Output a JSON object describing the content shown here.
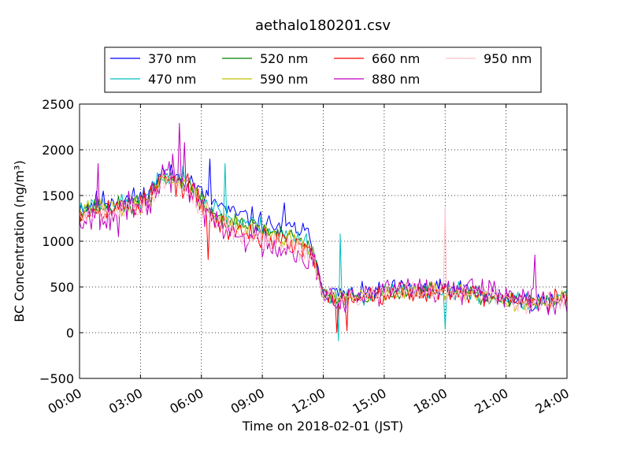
{
  "chart_data": {
    "type": "line",
    "title": "aethalo180201.csv",
    "xlabel": "Time on 2018-02-01 (JST)",
    "ylabel": "BC Concentration (ng/m³)",
    "x_ticks": [
      "00:00",
      "03:00",
      "06:00",
      "09:00",
      "12:00",
      "15:00",
      "18:00",
      "21:00",
      "24:00"
    ],
    "y_ticks": [
      -500,
      0,
      500,
      1000,
      1500,
      2000,
      2500
    ],
    "xlim_hours": [
      0,
      24
    ],
    "ylim": [
      -500,
      2500
    ],
    "grid": true,
    "legend_position": "top-center",
    "series": [
      {
        "name": "370 nm",
        "color": "#0000ff",
        "seed": 11,
        "noise": 110,
        "spikes": [
          [
            6.45,
            1900
          ],
          [
            10.1,
            1420
          ]
        ],
        "values": [
          [
            0,
            1380
          ],
          [
            1,
            1440
          ],
          [
            2,
            1450
          ],
          [
            3,
            1480
          ],
          [
            3.5,
            1550
          ],
          [
            4,
            1750
          ],
          [
            4.5,
            1720
          ],
          [
            5,
            1700
          ],
          [
            5.5,
            1660
          ],
          [
            6,
            1520
          ],
          [
            6.5,
            1450
          ],
          [
            7,
            1380
          ],
          [
            7.5,
            1300
          ],
          [
            8,
            1280
          ],
          [
            8.5,
            1250
          ],
          [
            9,
            1200
          ],
          [
            10,
            1150
          ],
          [
            11,
            1120
          ],
          [
            11.5,
            960
          ],
          [
            12,
            450
          ],
          [
            13,
            420
          ],
          [
            14,
            420
          ],
          [
            15,
            470
          ],
          [
            16,
            480
          ],
          [
            17,
            470
          ],
          [
            18,
            480
          ],
          [
            19,
            460
          ],
          [
            20,
            420
          ],
          [
            21,
            390
          ],
          [
            22,
            340
          ],
          [
            23,
            340
          ],
          [
            24,
            400
          ]
        ]
      },
      {
        "name": "470 nm",
        "color": "#00bfbf",
        "seed": 23,
        "noise": 100,
        "spikes": [
          [
            7.15,
            1850
          ],
          [
            12.85,
            1080
          ],
          [
            12.75,
            -90
          ],
          [
            18,
            40
          ]
        ],
        "values": [
          [
            0,
            1360
          ],
          [
            1,
            1400
          ],
          [
            2,
            1400
          ],
          [
            3,
            1440
          ],
          [
            3.5,
            1520
          ],
          [
            4,
            1720
          ],
          [
            4.5,
            1700
          ],
          [
            5,
            1680
          ],
          [
            5.5,
            1640
          ],
          [
            6,
            1480
          ],
          [
            6.5,
            1380
          ],
          [
            7,
            1300
          ],
          [
            7.5,
            1230
          ],
          [
            8,
            1220
          ],
          [
            8.5,
            1200
          ],
          [
            9,
            1150
          ],
          [
            10,
            1080
          ],
          [
            11,
            1040
          ],
          [
            11.5,
            900
          ],
          [
            12,
            420
          ],
          [
            13,
            400
          ],
          [
            14,
            400
          ],
          [
            15,
            450
          ],
          [
            16,
            460
          ],
          [
            17,
            450
          ],
          [
            18,
            460
          ],
          [
            19,
            440
          ],
          [
            20,
            400
          ],
          [
            21,
            380
          ],
          [
            22,
            330
          ],
          [
            23,
            330
          ],
          [
            24,
            390
          ]
        ]
      },
      {
        "name": "520 nm",
        "color": "#008000",
        "seed": 37,
        "noise": 95,
        "spikes": [],
        "values": [
          [
            0,
            1330
          ],
          [
            1,
            1380
          ],
          [
            2,
            1380
          ],
          [
            3,
            1420
          ],
          [
            3.5,
            1490
          ],
          [
            4,
            1700
          ],
          [
            4.5,
            1680
          ],
          [
            5,
            1650
          ],
          [
            5.5,
            1600
          ],
          [
            6,
            1440
          ],
          [
            6.5,
            1320
          ],
          [
            7,
            1250
          ],
          [
            7.5,
            1200
          ],
          [
            8,
            1190
          ],
          [
            8.5,
            1160
          ],
          [
            9,
            1120
          ],
          [
            10,
            1050
          ],
          [
            11,
            1000
          ],
          [
            11.5,
            860
          ],
          [
            12,
            400
          ],
          [
            13,
            390
          ],
          [
            14,
            400
          ],
          [
            15,
            440
          ],
          [
            16,
            450
          ],
          [
            17,
            440
          ],
          [
            18,
            450
          ],
          [
            19,
            430
          ],
          [
            20,
            390
          ],
          [
            21,
            370
          ],
          [
            22,
            320
          ],
          [
            23,
            320
          ],
          [
            24,
            380
          ]
        ]
      },
      {
        "name": "590 nm",
        "color": "#bfbf00",
        "seed": 41,
        "noise": 95,
        "spikes": [],
        "values": [
          [
            0,
            1320
          ],
          [
            1,
            1370
          ],
          [
            2,
            1370
          ],
          [
            3,
            1410
          ],
          [
            3.5,
            1480
          ],
          [
            4,
            1690
          ],
          [
            4.5,
            1670
          ],
          [
            5,
            1640
          ],
          [
            5.5,
            1590
          ],
          [
            6,
            1430
          ],
          [
            6.5,
            1310
          ],
          [
            7,
            1240
          ],
          [
            7.5,
            1190
          ],
          [
            8,
            1180
          ],
          [
            8.5,
            1150
          ],
          [
            9,
            1110
          ],
          [
            10,
            1040
          ],
          [
            11,
            990
          ],
          [
            11.5,
            850
          ],
          [
            12,
            400
          ],
          [
            13,
            385
          ],
          [
            14,
            395
          ],
          [
            15,
            435
          ],
          [
            16,
            445
          ],
          [
            17,
            435
          ],
          [
            18,
            445
          ],
          [
            19,
            425
          ],
          [
            20,
            385
          ],
          [
            21,
            365
          ],
          [
            22,
            315
          ],
          [
            23,
            315
          ],
          [
            24,
            375
          ]
        ]
      },
      {
        "name": "660 nm",
        "color": "#ff0000",
        "seed": 53,
        "noise": 120,
        "spikes": [
          [
            6.3,
            800
          ],
          [
            12.7,
            0
          ],
          [
            13.2,
            20
          ]
        ],
        "values": [
          [
            0,
            1300
          ],
          [
            1,
            1360
          ],
          [
            2,
            1360
          ],
          [
            3,
            1400
          ],
          [
            3.5,
            1480
          ],
          [
            4,
            1680
          ],
          [
            4.5,
            1660
          ],
          [
            5,
            1620
          ],
          [
            5.5,
            1560
          ],
          [
            6,
            1400
          ],
          [
            6.5,
            1250
          ],
          [
            7,
            1180
          ],
          [
            7.5,
            1120
          ],
          [
            8,
            1100
          ],
          [
            8.5,
            1080
          ],
          [
            9,
            1050
          ],
          [
            10,
            980
          ],
          [
            11,
            930
          ],
          [
            11.5,
            820
          ],
          [
            12,
            400
          ],
          [
            13,
            380
          ],
          [
            14,
            400
          ],
          [
            15,
            440
          ],
          [
            16,
            450
          ],
          [
            17,
            440
          ],
          [
            18,
            460
          ],
          [
            19,
            440
          ],
          [
            20,
            400
          ],
          [
            21,
            380
          ],
          [
            22,
            330
          ],
          [
            23,
            330
          ],
          [
            24,
            400
          ]
        ]
      },
      {
        "name": "880 nm",
        "color": "#bf00bf",
        "seed": 67,
        "noise": 170,
        "spikes": [
          [
            4.9,
            2290
          ],
          [
            5.15,
            2080
          ],
          [
            0.9,
            1850
          ],
          [
            22.4,
            850
          ],
          [
            1.9,
            1050
          ]
        ],
        "values": [
          [
            0,
            1250
          ],
          [
            1,
            1320
          ],
          [
            2,
            1320
          ],
          [
            3,
            1360
          ],
          [
            3.5,
            1450
          ],
          [
            4,
            1700
          ],
          [
            4.5,
            1720
          ],
          [
            5,
            1680
          ],
          [
            5.5,
            1550
          ],
          [
            6,
            1380
          ],
          [
            6.5,
            1230
          ],
          [
            7,
            1150
          ],
          [
            7.5,
            1080
          ],
          [
            8,
            1060
          ],
          [
            8.5,
            1040
          ],
          [
            9,
            1000
          ],
          [
            10,
            940
          ],
          [
            11,
            880
          ],
          [
            11.5,
            780
          ],
          [
            12,
            400
          ],
          [
            13,
            390
          ],
          [
            14,
            410
          ],
          [
            15,
            460
          ],
          [
            16,
            480
          ],
          [
            17,
            470
          ],
          [
            18,
            480
          ],
          [
            19,
            460
          ],
          [
            20,
            420
          ],
          [
            21,
            390
          ],
          [
            22,
            340
          ],
          [
            23,
            340
          ],
          [
            24,
            380
          ]
        ]
      },
      {
        "name": "950 nm",
        "color": "#ffc0cb",
        "seed": 79,
        "noise": 120,
        "spikes": [
          [
            18,
            1380
          ]
        ],
        "values": [
          [
            0,
            1280
          ],
          [
            1,
            1340
          ],
          [
            2,
            1340
          ],
          [
            3,
            1380
          ],
          [
            3.5,
            1460
          ],
          [
            4,
            1660
          ],
          [
            4.5,
            1640
          ],
          [
            5,
            1600
          ],
          [
            5.5,
            1540
          ],
          [
            6,
            1380
          ],
          [
            6.5,
            1240
          ],
          [
            7,
            1170
          ],
          [
            7.5,
            1110
          ],
          [
            8,
            1090
          ],
          [
            8.5,
            1070
          ],
          [
            9,
            1040
          ],
          [
            10,
            970
          ],
          [
            11,
            920
          ],
          [
            11.5,
            810
          ],
          [
            12,
            390
          ],
          [
            13,
            380
          ],
          [
            14,
            395
          ],
          [
            15,
            440
          ],
          [
            16,
            450
          ],
          [
            17,
            440
          ],
          [
            18,
            450
          ],
          [
            19,
            430
          ],
          [
            20,
            390
          ],
          [
            21,
            370
          ],
          [
            22,
            320
          ],
          [
            23,
            320
          ],
          [
            24,
            380
          ]
        ]
      }
    ]
  }
}
